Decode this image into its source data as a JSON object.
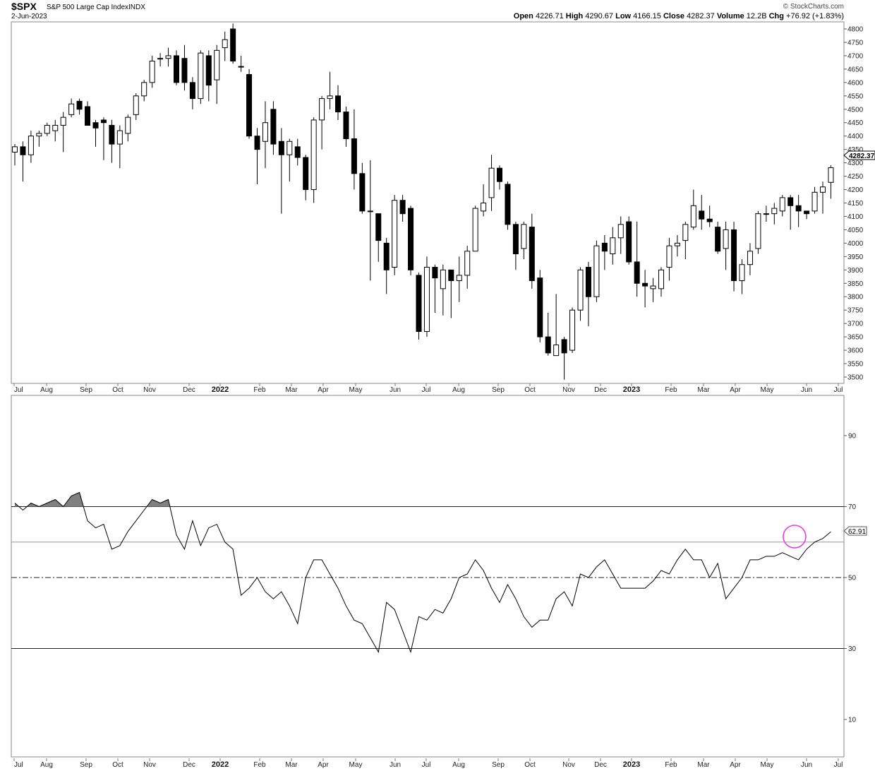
{
  "header": {
    "symbol": "$SPX",
    "name": "S&P 500 Large Cap Index",
    "exchange": "INDX",
    "date": "2-Jun-2023",
    "watermark": "© StockCharts.com",
    "ohlc": [
      {
        "label": "Open",
        "value": "4226.71"
      },
      {
        "label": "High",
        "value": "4290.67"
      },
      {
        "label": "Low",
        "value": "4166.15"
      },
      {
        "label": "Close",
        "value": "4282.37"
      },
      {
        "label": "Volume",
        "value": "12.2B"
      },
      {
        "label": "Chg",
        "value": "+76.92 (+1.83%)"
      }
    ]
  },
  "price_axis_ticks": [
    "4800",
    "4750",
    "4700",
    "4650",
    "4600",
    "4550",
    "4500",
    "4450",
    "4400",
    "4350",
    "4300",
    "4250",
    "4200",
    "4150",
    "4100",
    "4050",
    "4000",
    "3950",
    "3900",
    "3850",
    "3800",
    "3750",
    "3700",
    "3650",
    "3600",
    "3550",
    "3500"
  ],
  "last_price_label": "4282.37",
  "rsi_axis_ticks": [
    "90",
    "70",
    "50",
    "30",
    "10"
  ],
  "last_rsi_label": "62.91",
  "month_labels": [
    {
      "label": "Jul",
      "bold": false
    },
    {
      "label": "Aug",
      "bold": false
    },
    {
      "label": "Sep",
      "bold": false
    },
    {
      "label": "Oct",
      "bold": false
    },
    {
      "label": "Nov",
      "bold": false
    },
    {
      "label": "Dec",
      "bold": false
    },
    {
      "label": "2022",
      "bold": true
    },
    {
      "label": "Feb",
      "bold": false
    },
    {
      "label": "Mar",
      "bold": false
    },
    {
      "label": "Apr",
      "bold": false
    },
    {
      "label": "May",
      "bold": false
    },
    {
      "label": "Jun",
      "bold": false
    },
    {
      "label": "Jul",
      "bold": false
    },
    {
      "label": "Aug",
      "bold": false
    },
    {
      "label": "Sep",
      "bold": false
    },
    {
      "label": "Oct",
      "bold": false
    },
    {
      "label": "Nov",
      "bold": false
    },
    {
      "label": "Dec",
      "bold": false
    },
    {
      "label": "2023",
      "bold": true
    },
    {
      "label": "Feb",
      "bold": false
    },
    {
      "label": "Mar",
      "bold": false
    },
    {
      "label": "Apr",
      "bold": false
    },
    {
      "label": "May",
      "bold": false
    },
    {
      "label": "Jun",
      "bold": false
    },
    {
      "label": "Jul",
      "bold": false
    }
  ],
  "chart_data": [
    {
      "type": "candlestick",
      "title": "$SPX S&P 500 Large Cap Index INDX",
      "interval": "weekly",
      "period": "Jul 2021 – Jun 2023",
      "ylim": [
        3470,
        4830
      ],
      "colors": {
        "up": "#ffffff",
        "down": "#000000",
        "wick": "#000000"
      },
      "candles": [
        [
          4340,
          4360,
          4290,
          4370
        ],
        [
          4360,
          4330,
          4230,
          4380
        ],
        [
          4330,
          4400,
          4300,
          4420
        ],
        [
          4400,
          4410,
          4360,
          4420
        ],
        [
          4410,
          4440,
          4400,
          4450
        ],
        [
          4420,
          4440,
          4380,
          4460
        ],
        [
          4440,
          4470,
          4340,
          4490
        ],
        [
          4480,
          4520,
          4470,
          4540
        ],
        [
          4530,
          4500,
          4480,
          4540
        ],
        [
          4510,
          4440,
          4440,
          4530
        ],
        [
          4450,
          4430,
          4360,
          4460
        ],
        [
          4460,
          4450,
          4310,
          4470
        ],
        [
          4440,
          4370,
          4300,
          4460
        ],
        [
          4370,
          4420,
          4280,
          4440
        ],
        [
          4410,
          4470,
          4380,
          4480
        ],
        [
          4480,
          4550,
          4460,
          4560
        ],
        [
          4550,
          4600,
          4530,
          4610
        ],
        [
          4600,
          4680,
          4580,
          4700
        ],
        [
          4690,
          4690,
          4660,
          4710
        ],
        [
          4690,
          4700,
          4660,
          4730
        ],
        [
          4700,
          4600,
          4590,
          4720
        ],
        [
          4690,
          4600,
          4570,
          4740
        ],
        [
          4600,
          4540,
          4500,
          4620
        ],
        [
          4540,
          4710,
          4520,
          4720
        ],
        [
          4700,
          4590,
          4530,
          4720
        ],
        [
          4610,
          4720,
          4520,
          4740
        ],
        [
          4730,
          4760,
          4680,
          4790
        ],
        [
          4800,
          4680,
          4670,
          4820
        ],
        [
          4660,
          4660,
          4640,
          4700
        ],
        [
          4630,
          4400,
          4390,
          4650
        ],
        [
          4400,
          4350,
          4220,
          4430
        ],
        [
          4380,
          4450,
          4280,
          4530
        ],
        [
          4500,
          4370,
          4330,
          4530
        ],
        [
          4380,
          4330,
          4110,
          4430
        ],
        [
          4330,
          4380,
          4230,
          4390
        ],
        [
          4360,
          4320,
          4290,
          4390
        ],
        [
          4320,
          4200,
          4160,
          4330
        ],
        [
          4200,
          4460,
          4150,
          4470
        ],
        [
          4460,
          4540,
          4350,
          4550
        ],
        [
          4540,
          4550,
          4500,
          4640
        ],
        [
          4550,
          4490,
          4460,
          4590
        ],
        [
          4490,
          4390,
          4360,
          4510
        ],
        [
          4390,
          4260,
          4200,
          4500
        ],
        [
          4260,
          4120,
          4110,
          4300
        ],
        [
          4120,
          4120,
          3860,
          4310
        ],
        [
          4110,
          4010,
          3930,
          4110
        ],
        [
          4000,
          3900,
          3810,
          4020
        ],
        [
          3910,
          4160,
          3880,
          4180
        ],
        [
          4160,
          4110,
          4080,
          4180
        ],
        [
          4130,
          3900,
          3880,
          4140
        ],
        [
          3880,
          3670,
          3640,
          3890
        ],
        [
          3670,
          3910,
          3650,
          3950
        ],
        [
          3910,
          3870,
          3740,
          3920
        ],
        [
          3830,
          3900,
          3730,
          3920
        ],
        [
          3900,
          3860,
          3720,
          3900
        ],
        [
          3860,
          3880,
          3780,
          3950
        ],
        [
          3880,
          3970,
          3830,
          3990
        ],
        [
          3970,
          4130,
          3970,
          4140
        ],
        [
          4120,
          4150,
          4100,
          4220
        ],
        [
          4170,
          4280,
          4120,
          4330
        ],
        [
          4280,
          4230,
          4200,
          4290
        ],
        [
          4220,
          4070,
          4050,
          4230
        ],
        [
          4070,
          3960,
          3900,
          4080
        ],
        [
          3980,
          4070,
          3940,
          4080
        ],
        [
          4060,
          3860,
          3830,
          4110
        ],
        [
          3870,
          3650,
          3630,
          3900
        ],
        [
          3650,
          3590,
          3580,
          3740
        ],
        [
          3580,
          3620,
          3590,
          3810
        ],
        [
          3640,
          3590,
          3490,
          3650
        ],
        [
          3600,
          3750,
          3590,
          3760
        ],
        [
          3750,
          3900,
          3710,
          3910
        ],
        [
          3910,
          3800,
          3690,
          3930
        ],
        [
          3800,
          3990,
          3780,
          4010
        ],
        [
          4000,
          3970,
          3900,
          4030
        ],
        [
          3960,
          4020,
          3920,
          4060
        ],
        [
          4020,
          4070,
          3960,
          4100
        ],
        [
          4080,
          3930,
          3920,
          4100
        ],
        [
          3930,
          3850,
          3800,
          4080
        ],
        [
          3850,
          3840,
          3760,
          3900
        ],
        [
          3830,
          3840,
          3780,
          3870
        ],
        [
          3830,
          3900,
          3800,
          3910
        ],
        [
          3910,
          3990,
          3860,
          4020
        ],
        [
          3990,
          4000,
          3950,
          4030
        ],
        [
          4010,
          4070,
          3940,
          4080
        ],
        [
          4060,
          4140,
          4050,
          4200
        ],
        [
          4120,
          4090,
          4050,
          4180
        ],
        [
          4090,
          4080,
          4060,
          4140
        ],
        [
          4060,
          3970,
          3960,
          4080
        ],
        [
          3980,
          4050,
          3900,
          4080
        ],
        [
          4050,
          3860,
          3820,
          4080
        ],
        [
          3860,
          3920,
          3810,
          3940
        ],
        [
          3920,
          3970,
          3880,
          4000
        ],
        [
          3980,
          4110,
          3960,
          4120
        ],
        [
          4110,
          4110,
          4080,
          4140
        ],
        [
          4110,
          4130,
          4070,
          4150
        ],
        [
          4120,
          4170,
          4100,
          4180
        ],
        [
          4170,
          4140,
          4050,
          4180
        ],
        [
          4140,
          4120,
          4060,
          4180
        ],
        [
          4120,
          4110,
          4090,
          4120
        ],
        [
          4120,
          4190,
          4110,
          4210
        ],
        [
          4190,
          4210,
          4110,
          4230
        ],
        [
          4227,
          4282,
          4166,
          4291
        ]
      ]
    },
    {
      "type": "line",
      "title": "RSI",
      "ylim": [
        0,
        100
      ],
      "reference_lines": [
        {
          "value": 70,
          "style": "solid"
        },
        {
          "value": 60,
          "style": "solid"
        },
        {
          "value": 50,
          "style": "dash-dot"
        },
        {
          "value": 30,
          "style": "solid"
        }
      ],
      "overbought_fill_color": "#808080",
      "highlight_circle_color": "#e63ce6",
      "last_value": 62.91,
      "values": [
        71,
        69,
        71,
        70,
        71,
        72,
        70,
        73,
        74,
        66,
        64,
        65,
        58,
        59,
        63,
        66,
        69,
        72,
        71,
        72,
        62,
        58,
        66,
        59,
        64,
        65,
        60,
        58,
        45,
        47,
        50,
        46,
        44,
        46,
        42,
        37,
        50,
        55,
        55,
        51,
        47,
        42,
        38,
        37,
        33,
        29,
        43,
        41,
        35,
        29,
        39,
        38,
        41,
        40,
        44,
        50,
        51,
        55,
        52,
        47,
        43,
        48,
        44,
        39,
        36,
        38,
        38,
        44,
        46,
        42,
        51,
        50,
        53,
        55,
        51,
        47,
        47,
        47,
        47,
        49,
        52,
        51,
        55,
        58,
        55,
        55,
        50,
        54,
        44,
        47,
        50,
        55,
        55,
        56,
        56,
        57,
        56,
        55,
        58,
        60,
        61,
        62.91
      ]
    }
  ]
}
